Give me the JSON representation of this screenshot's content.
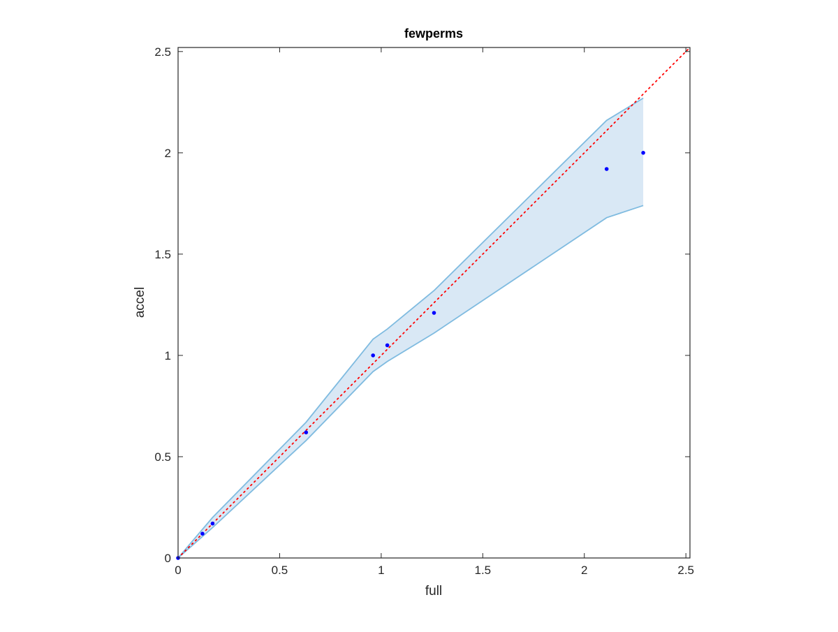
{
  "chart_data": {
    "type": "scatter",
    "title": "fewperms",
    "xlabel": "full",
    "ylabel": "accel",
    "xlim": [
      0,
      2.52
    ],
    "ylim": [
      0,
      2.52
    ],
    "xticks": [
      0,
      0.5,
      1,
      1.5,
      2,
      2.5
    ],
    "yticks": [
      0,
      0.5,
      1,
      1.5,
      2,
      2.5
    ],
    "xtick_labels": [
      "0",
      "0.5",
      "1",
      "1.5",
      "2",
      "2.5"
    ],
    "ytick_labels": [
      "0",
      "0.5",
      "1",
      "1.5",
      "2",
      "2.5"
    ],
    "grid": false,
    "points": {
      "x": [
        0,
        0.12,
        0.17,
        0.63,
        0.96,
        1.03,
        1.26,
        2.11,
        2.29
      ],
      "y": [
        0,
        0.12,
        0.17,
        0.62,
        1.0,
        1.05,
        1.21,
        1.92,
        2.0
      ],
      "color": "#0000ff"
    },
    "band": {
      "x": [
        0,
        0.17,
        0.63,
        0.96,
        1.03,
        1.26,
        2.11,
        2.29
      ],
      "upper": [
        0,
        0.2,
        0.67,
        1.08,
        1.13,
        1.32,
        2.16,
        2.27
      ],
      "lower": [
        0,
        0.15,
        0.58,
        0.92,
        0.97,
        1.11,
        1.68,
        1.74
      ],
      "fill_color": "#d9e8f5",
      "edge_color": "#7fbbe0"
    },
    "reference_line": {
      "x": [
        0,
        2.52
      ],
      "y": [
        0,
        2.52
      ],
      "color": "#ff0000",
      "style": "dotted"
    }
  }
}
